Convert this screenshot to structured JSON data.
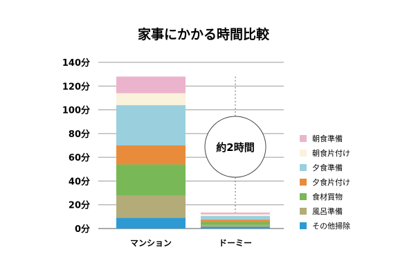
{
  "chart_data": {
    "type": "bar",
    "stacked": true,
    "title": "家事にかかる時間比較",
    "xlabel": "",
    "ylabel": "",
    "ylim": [
      0,
      140
    ],
    "yticks": [
      "0分",
      "20分",
      "40分",
      "60分",
      "80分",
      "100分",
      "120分",
      "140分"
    ],
    "grid": true,
    "legend_position": "right",
    "categories": [
      "マンション",
      "ドーミー"
    ],
    "series": [
      {
        "name": "その他掃除",
        "color": "#2e9ad4",
        "values": [
          9,
          1.5
        ]
      },
      {
        "name": "風呂準備",
        "color": "#b4ac78",
        "values": [
          19,
          1.5
        ]
      },
      {
        "name": "食材買物",
        "color": "#78b856",
        "values": [
          26,
          2.5
        ]
      },
      {
        "name": "夕食片付け",
        "color": "#e88c3c",
        "values": [
          16,
          2
        ]
      },
      {
        "name": "夕食準備",
        "color": "#9ad0de",
        "values": [
          34,
          3
        ]
      },
      {
        "name": "朝食片付け",
        "color": "#fbf2dc",
        "values": [
          10,
          1.5
        ]
      },
      {
        "name": "朝食準備",
        "color": "#ebb4cc",
        "values": [
          14,
          1.5
        ]
      }
    ],
    "annotation": "約2時間"
  }
}
